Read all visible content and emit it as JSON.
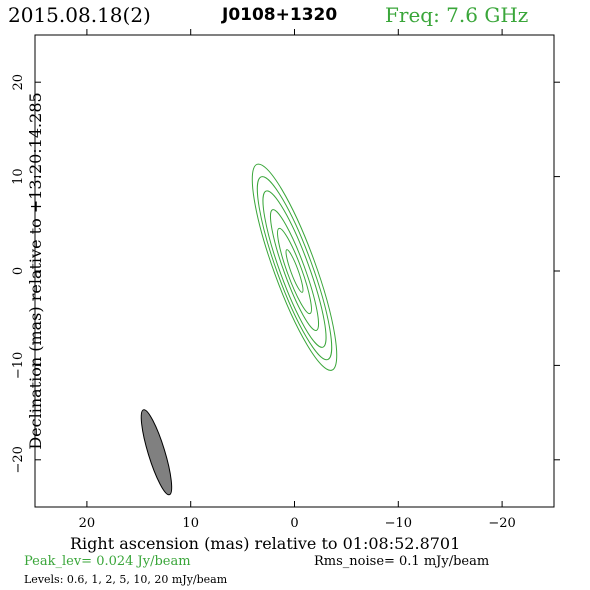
{
  "header": {
    "date": "2015.08.18(2)",
    "source": "J0108+1320",
    "frequency": "Freq: 7.6 GHz"
  },
  "footer": {
    "peak": "Peak_lev=  0.024 Jy/beam",
    "rms": "Rms_noise=   0.1 mJy/beam",
    "levels": "Levels: 0.6,    1,    2,    5,   10,   20 mJy/beam"
  },
  "colors": {
    "contour": "#3aa63a",
    "beam_fill": "#808080",
    "axes": "#000000",
    "accent_text": "#3aa63a"
  },
  "chart_data": {
    "type": "contour",
    "xlabel": "Right ascension (mas) relative to 01:08:52.8701",
    "ylabel": "Declination (mas) relative to +13:20:14.285",
    "xlim": [
      25,
      -25
    ],
    "ylim": [
      -25,
      25
    ],
    "xticks": [
      20,
      10,
      0,
      -10,
      -20
    ],
    "yticks": [
      20,
      10,
      0,
      -10,
      -20
    ],
    "xtick_labels": [
      "20",
      "10",
      "0",
      "−10",
      "−20"
    ],
    "ytick_labels": [
      "20",
      "10",
      "0",
      "−10",
      "−20"
    ],
    "contour_levels_mjy": [
      0.6,
      1,
      2,
      5,
      10,
      20
    ],
    "contours": [
      {
        "level": 0.6,
        "x0": 0.0,
        "y0": 0.4,
        "semi_major": 11.6,
        "semi_minor": 2.0,
        "pa_deg": -20
      },
      {
        "level": 1,
        "x0": 0.0,
        "y0": 0.3,
        "semi_major": 10.3,
        "semi_minor": 1.7,
        "pa_deg": -20
      },
      {
        "level": 2,
        "x0": 0.0,
        "y0": 0.2,
        "semi_major": 8.8,
        "semi_minor": 1.4,
        "pa_deg": -20
      },
      {
        "level": 5,
        "x0": 0.0,
        "y0": 0.1,
        "semi_major": 6.8,
        "semi_minor": 1.0,
        "pa_deg": -20
      },
      {
        "level": 10,
        "x0": 0.0,
        "y0": 0.0,
        "semi_major": 4.8,
        "semi_minor": 0.7,
        "pa_deg": -20
      },
      {
        "level": 20,
        "x0": 0.0,
        "y0": 0.0,
        "semi_major": 2.4,
        "semi_minor": 0.35,
        "pa_deg": -20
      }
    ],
    "beam": {
      "x0": 13.3,
      "y0": -19.2,
      "semi_major": 4.7,
      "semi_minor": 0.8,
      "pa_deg": -17
    }
  }
}
